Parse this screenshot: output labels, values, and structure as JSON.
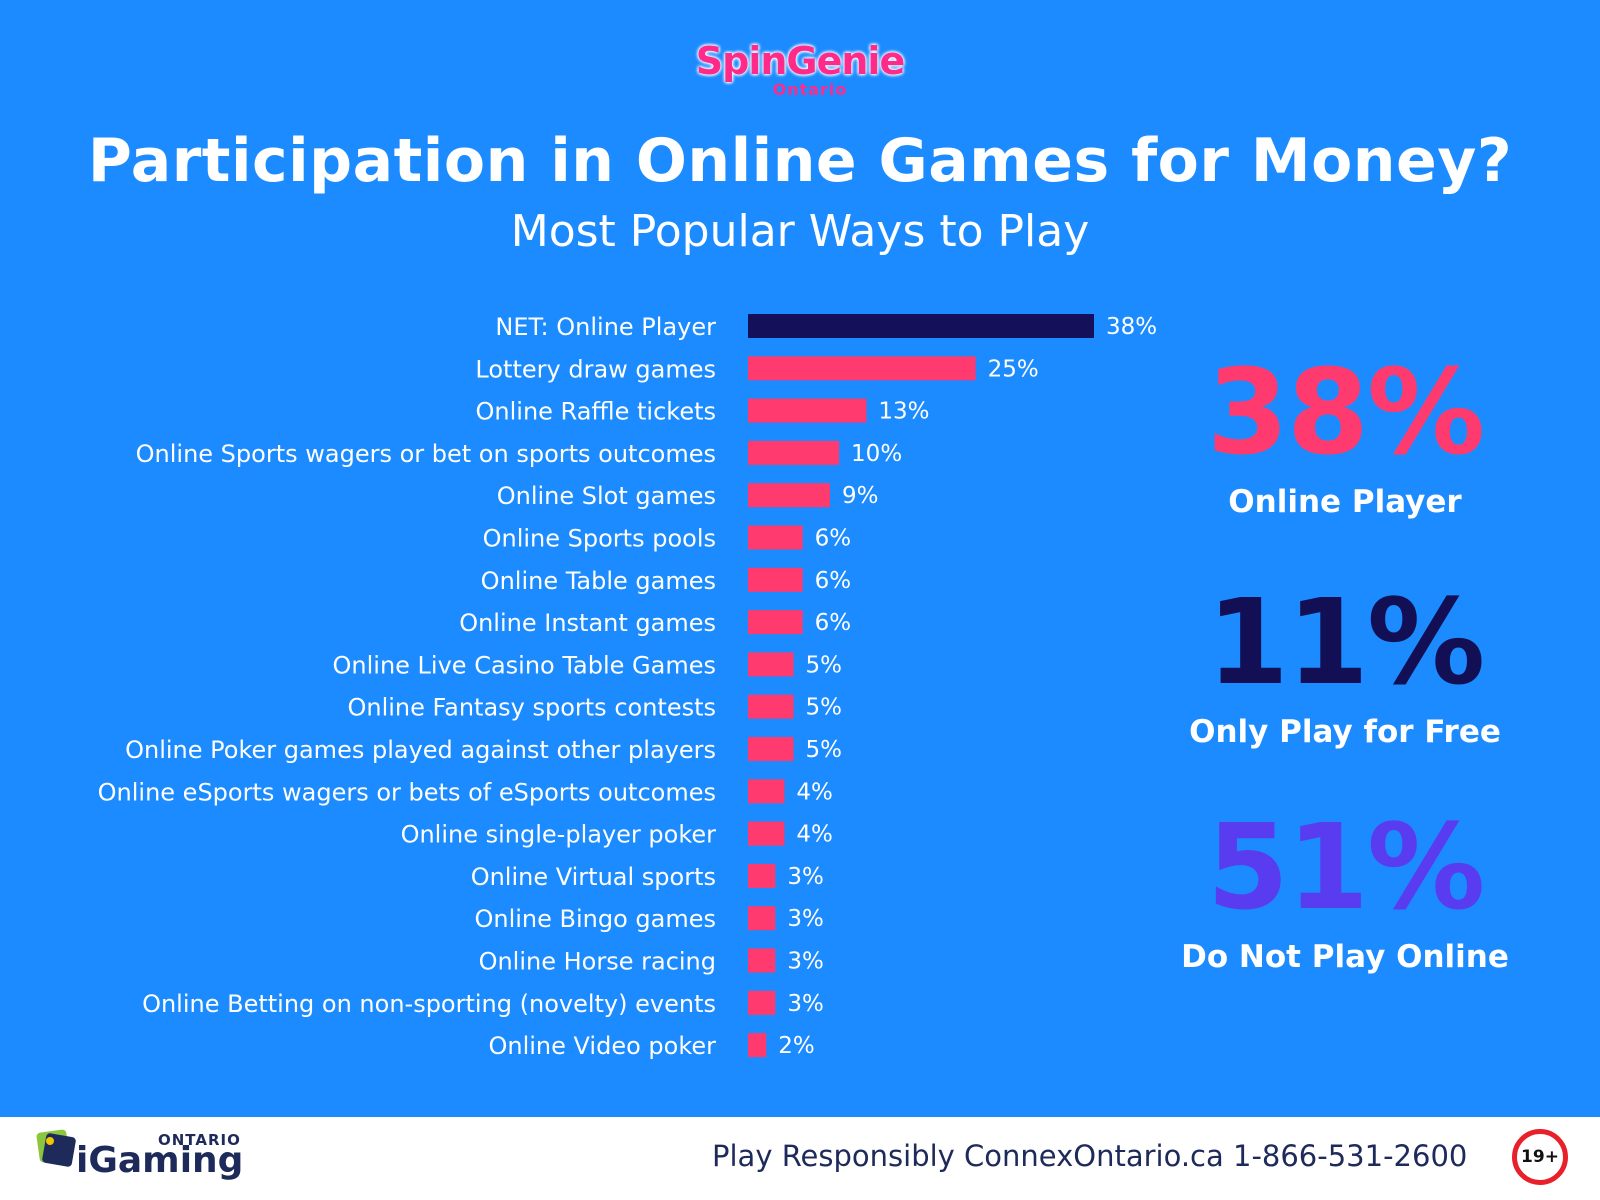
{
  "brand": {
    "name": "SpinGenie",
    "sub": "Ontario"
  },
  "title": "Participation in Online Games for Money?",
  "subtitle": "Most Popular Ways to Play",
  "chart_data": {
    "type": "bar",
    "orientation": "horizontal",
    "title": "Participation in Online Games for Money?",
    "subtitle": "Most Popular Ways to Play",
    "categories": [
      "NET: Online Player",
      "Lottery draw games",
      "Online Raffle tickets",
      "Online Sports wagers or bet on sports outcomes",
      "Online Slot games",
      "Online Sports pools",
      "Online Table games",
      "Online Instant games",
      "Online Live Casino Table Games",
      "Online Fantasy sports contests",
      "Online Poker games played against other players",
      "Online eSports wagers or bets of eSports outcomes",
      "Online single-player poker",
      "Online Virtual sports",
      "Online Bingo games",
      "Online Horse racing",
      "Online Betting on non-sporting (novelty) events",
      "Online Video poker"
    ],
    "values": [
      38,
      25,
      13,
      10,
      9,
      6,
      6,
      6,
      5,
      5,
      5,
      4,
      4,
      3,
      3,
      3,
      3,
      2
    ],
    "value_labels": [
      "38%",
      "25%",
      "13%",
      "10%",
      "9%",
      "6%",
      "6%",
      "6%",
      "5%",
      "5%",
      "5%",
      "4%",
      "4%",
      "3%",
      "3%",
      "3%",
      "3%",
      "2%"
    ],
    "unit": "%",
    "xlim": [
      0,
      38
    ],
    "grid": false,
    "colors": {
      "highlight": "#14105a",
      "bars": "#ff3a6e"
    }
  },
  "stats": [
    {
      "value": "38%",
      "label": "Online Player",
      "color": "#ff3a6e"
    },
    {
      "value": "11%",
      "label": "Only Play for Free",
      "color": "#120f55"
    },
    {
      "value": "51%",
      "label": "Do Not Play Online",
      "color": "#5a3cf0"
    }
  ],
  "footer": {
    "logo_ontario": "ONTARIO",
    "logo_igaming": "iGaming",
    "text": "Play Responsibly ConnexOntario.ca 1-866-531-2600",
    "age_badge": "19+"
  }
}
